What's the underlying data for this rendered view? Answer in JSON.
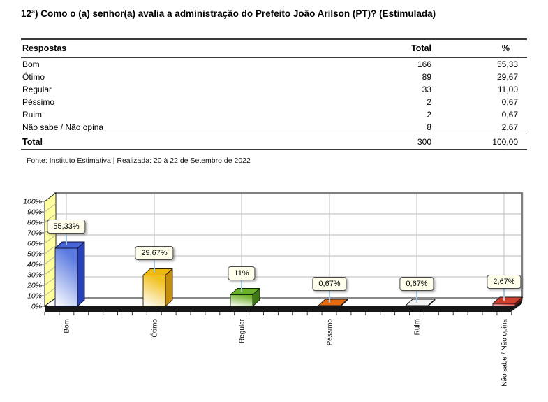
{
  "title": "12ª) Como o (a) senhor(a) avalia a administração do Prefeito João Arilson (PT)? (Estimulada)",
  "table": {
    "headers": [
      "Respostas",
      "Total",
      "%"
    ],
    "rows": [
      [
        "Bom",
        "166",
        "55,33"
      ],
      [
        "Ótimo",
        "89",
        "29,67"
      ],
      [
        "Regular",
        "33",
        "11,00"
      ],
      [
        "Péssimo",
        "2",
        "0,67"
      ],
      [
        "Ruim",
        "2",
        "0,67"
      ],
      [
        "Não sabe / Não opina",
        "8",
        "2,67"
      ]
    ],
    "total_row": [
      "Total",
      "300",
      "100,00"
    ]
  },
  "source": "Fonte: Instituto Estimativa | Realizada: 20 à 22 de Setembro de 2022",
  "chart_data": {
    "type": "bar",
    "style": "3d-column",
    "title": "",
    "xlabel": "",
    "ylabel": "",
    "categories": [
      "Bom",
      "Ótimo",
      "Regular",
      "Péssimo",
      "Ruim",
      "Não sabe / Não opina"
    ],
    "values": [
      55.33,
      29.67,
      11,
      0.67,
      0.67,
      2.67
    ],
    "point_labels": [
      "55,33%",
      "29,67%",
      "11%",
      "0,67%",
      "0,67%",
      "2,67%"
    ],
    "ylim": [
      0,
      100
    ],
    "y_tick_step": 10,
    "y_tick_labels": [
      "100%",
      "90%",
      "80%",
      "70%",
      "60%",
      "50%",
      "40%",
      "30%",
      "20%",
      "10%",
      "0%"
    ],
    "grid": "on",
    "legend": "none",
    "colors": {
      "wall": "#ffff9e",
      "grid_line": "#c6c6c6",
      "frame_edge": "#808080",
      "floor_face": "#161616",
      "label_box": "#ffffec",
      "connector": "#a8cce6",
      "bars": [
        {
          "name": "blue",
          "base": "#5b7be0",
          "top": "#4a64d6",
          "side": "#2840b8",
          "stroke": "#0a1238"
        },
        {
          "name": "gold",
          "base": "#f2c01e",
          "top": "#edb90f",
          "side": "#c78d0e",
          "stroke": "#2a2000"
        },
        {
          "name": "green",
          "base": "#74b430",
          "top": "#6cb228",
          "side": "#3f7a14",
          "stroke": "#14290a"
        },
        {
          "name": "orange",
          "base": "#d45c08",
          "top": "#e8690e",
          "side": "#9c4206",
          "stroke": "#1a1a1a"
        },
        {
          "name": "white",
          "base": "#e6e6e6",
          "top": "#f4f4f4",
          "side": "#cfcfcf",
          "stroke": "#1a1a1a"
        },
        {
          "name": "red",
          "base": "#c1251c",
          "top": "#d0402c",
          "side": "#8c150c",
          "stroke": "#1a1a1a"
        }
      ]
    }
  }
}
